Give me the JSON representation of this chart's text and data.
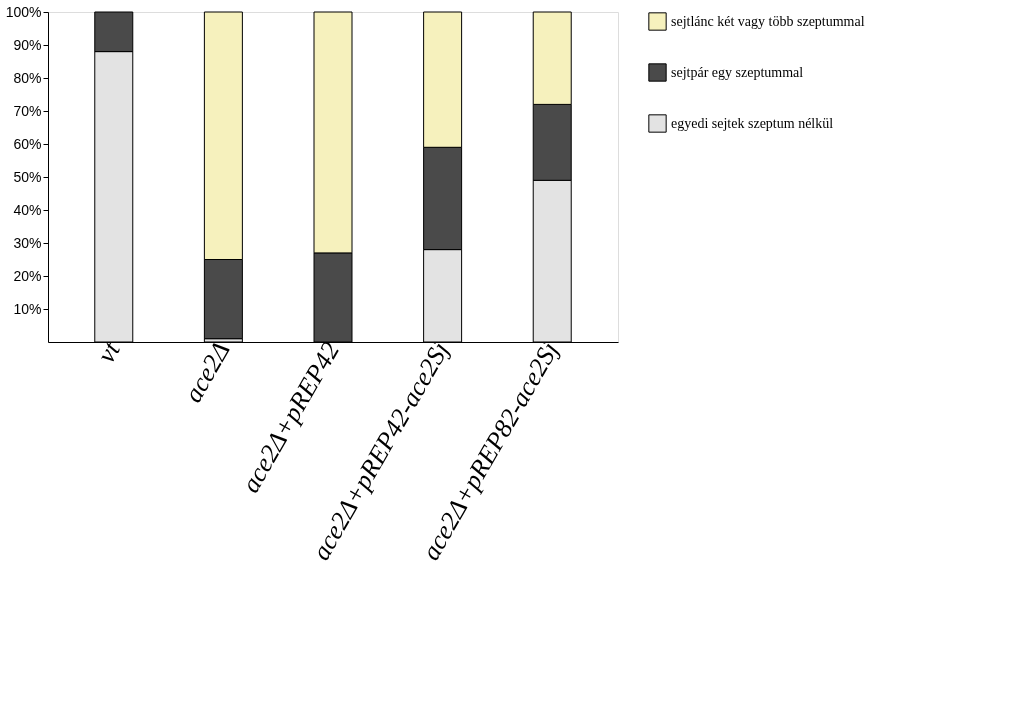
{
  "chart_data": {
    "type": "bar",
    "stacked": true,
    "categories": [
      "vt",
      "ace2Δ",
      "ace2Δ+pREP42",
      "ace2Δ+pREP42-ace2Sj",
      "ace2Δ+pREP82-ace2Sj"
    ],
    "series": [
      {
        "name": "egyedi sejtek szeptum nélkül",
        "color": "#e3e3e3",
        "values": [
          88,
          1,
          0,
          28,
          49
        ]
      },
      {
        "name": "sejtpár egy szeptummal",
        "color": "#4a4a4a",
        "values": [
          12,
          24,
          27,
          31,
          23
        ]
      },
      {
        "name": "sejtlánc két vagy több szeptummal",
        "color": "#f6f1bd",
        "values": [
          0,
          75,
          73,
          41,
          28
        ]
      }
    ],
    "ylim": [
      0,
      100
    ],
    "yticks": [
      {
        "value": 10,
        "label": "10%"
      },
      {
        "value": 20,
        "label": "20%"
      },
      {
        "value": 30,
        "label": "30%"
      },
      {
        "value": 40,
        "label": "40%"
      },
      {
        "value": 50,
        "label": "50%"
      },
      {
        "value": 60,
        "label": "60%"
      },
      {
        "value": 70,
        "label": "70%"
      },
      {
        "value": 80,
        "label": "80%"
      },
      {
        "value": 90,
        "label": "90%"
      },
      {
        "value": 100,
        "label": "100%"
      }
    ],
    "grid": false,
    "legend": "top right"
  }
}
